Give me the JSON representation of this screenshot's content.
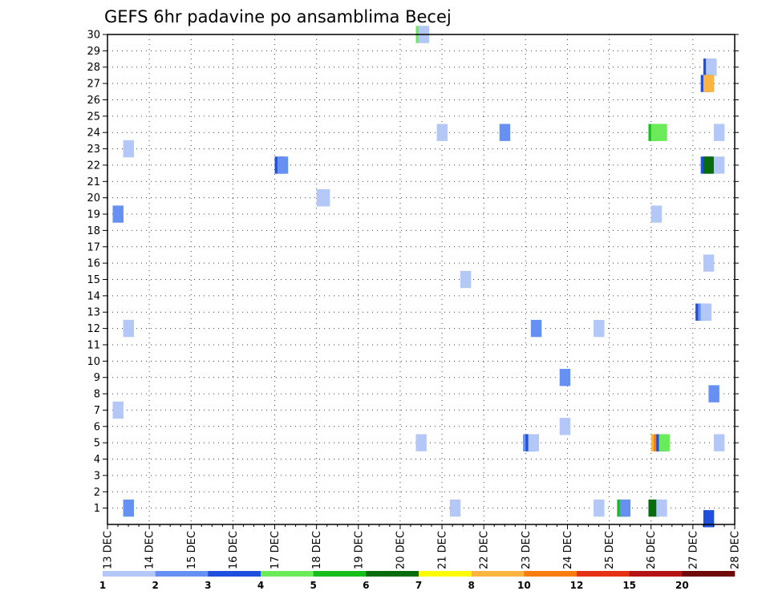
{
  "chart_data": {
    "type": "heatmap",
    "title": "GEFS 6hr padavine po ansamblima Becej",
    "xlabel": "",
    "ylabel": "",
    "x_tick_labels": [
      "13 DEC",
      "14 DEC",
      "15 DEC",
      "16 DEC",
      "17 DEC",
      "18 DEC",
      "19 DEC",
      "20 DEC",
      "21 DEC",
      "22 DEC",
      "23 DEC",
      "24 DEC",
      "25 DEC",
      "26 DEC",
      "27 DEC",
      "28 DEC"
    ],
    "x_range_days": [
      0,
      15
    ],
    "y_tick_labels": [
      "1",
      "2",
      "3",
      "4",
      "5",
      "6",
      "7",
      "8",
      "9",
      "10",
      "11",
      "12",
      "13",
      "14",
      "15",
      "16",
      "17",
      "18",
      "19",
      "20",
      "21",
      "22",
      "23",
      "24",
      "25",
      "26",
      "27",
      "28",
      "29",
      "30"
    ],
    "y_range": [
      0,
      30
    ],
    "grid": true,
    "colorbar": {
      "labels": [
        "1",
        "2",
        "3",
        "4",
        "5",
        "6",
        "7",
        "8",
        "10",
        "12",
        "15",
        "20"
      ],
      "colors": [
        "#b4c8f8",
        "#6690f2",
        "#1f4fdc",
        "#6ceb5a",
        "#16be1c",
        "#066c0c",
        "#fcfc0a",
        "#fcb440",
        "#fc7d0e",
        "#e63214",
        "#b41414",
        "#6e0a0a"
      ]
    },
    "cells": [
      {
        "member": 30,
        "t": 29.5,
        "level": 4
      },
      {
        "member": 30,
        "t": 29.75,
        "level": 1
      },
      {
        "member": 28,
        "t": 57.0,
        "level": 3
      },
      {
        "member": 28,
        "t": 57.25,
        "level": 1
      },
      {
        "member": 27,
        "t": 56.75,
        "level": 3
      },
      {
        "member": 27,
        "t": 57.0,
        "level": 8
      },
      {
        "member": 24,
        "t": 31.5,
        "level": 1
      },
      {
        "member": 24,
        "t": 37.5,
        "level": 2
      },
      {
        "member": 24,
        "t": 51.75,
        "level": 5
      },
      {
        "member": 24,
        "t": 52.0,
        "level": 4
      },
      {
        "member": 24,
        "t": 52.5,
        "level": 4
      },
      {
        "member": 24,
        "t": 58.0,
        "level": 1
      },
      {
        "member": 23,
        "t": 1.5,
        "level": 1
      },
      {
        "member": 22,
        "t": 16.0,
        "level": 3
      },
      {
        "member": 22,
        "t": 16.25,
        "level": 2
      },
      {
        "member": 22,
        "t": 56.75,
        "level": 3
      },
      {
        "member": 22,
        "t": 57.0,
        "level": 6
      },
      {
        "member": 22,
        "t": 58.0,
        "level": 1
      },
      {
        "member": 20,
        "t": 20.0,
        "level": 1
      },
      {
        "member": 20,
        "t": 20.25,
        "level": 1
      },
      {
        "member": 19,
        "t": 0.5,
        "level": 2
      },
      {
        "member": 19,
        "t": 52.0,
        "level": 1
      },
      {
        "member": 16,
        "t": 57.0,
        "level": 1
      },
      {
        "member": 15,
        "t": 33.75,
        "level": 1
      },
      {
        "member": 13,
        "t": 56.25,
        "level": 3
      },
      {
        "member": 13,
        "t": 56.5,
        "level": 2
      },
      {
        "member": 13,
        "t": 56.75,
        "level": 1
      },
      {
        "member": 12,
        "t": 1.5,
        "level": 1
      },
      {
        "member": 12,
        "t": 40.5,
        "level": 2
      },
      {
        "member": 12,
        "t": 46.5,
        "level": 1
      },
      {
        "member": 9,
        "t": 43.25,
        "level": 2
      },
      {
        "member": 8,
        "t": 57.5,
        "level": 2
      },
      {
        "member": 7,
        "t": 0.5,
        "level": 1
      },
      {
        "member": 6,
        "t": 43.25,
        "level": 1
      },
      {
        "member": 5,
        "t": 29.5,
        "level": 1
      },
      {
        "member": 5,
        "t": 39.75,
        "level": 2
      },
      {
        "member": 5,
        "t": 40.0,
        "level": 3
      },
      {
        "member": 5,
        "t": 40.25,
        "level": 1
      },
      {
        "member": 5,
        "t": 52.0,
        "level": 8
      },
      {
        "member": 5,
        "t": 52.25,
        "level": 9
      },
      {
        "member": 5,
        "t": 52.5,
        "level": 3
      },
      {
        "member": 5,
        "t": 52.75,
        "level": 4
      },
      {
        "member": 5,
        "t": 58.0,
        "level": 1
      },
      {
        "member": 1,
        "t": 1.5,
        "level": 2
      },
      {
        "member": 1,
        "t": 32.75,
        "level": 1
      },
      {
        "member": 1,
        "t": 46.5,
        "level": 1
      },
      {
        "member": 1,
        "t": 48.75,
        "level": 5
      },
      {
        "member": 1,
        "t": 49.0,
        "level": 2
      },
      {
        "member": 1,
        "t": 51.75,
        "level": 6
      },
      {
        "member": 1,
        "t": 52.5,
        "level": 1
      },
      {
        "member": 0,
        "t": 57.0,
        "level": 3
      }
    ]
  }
}
